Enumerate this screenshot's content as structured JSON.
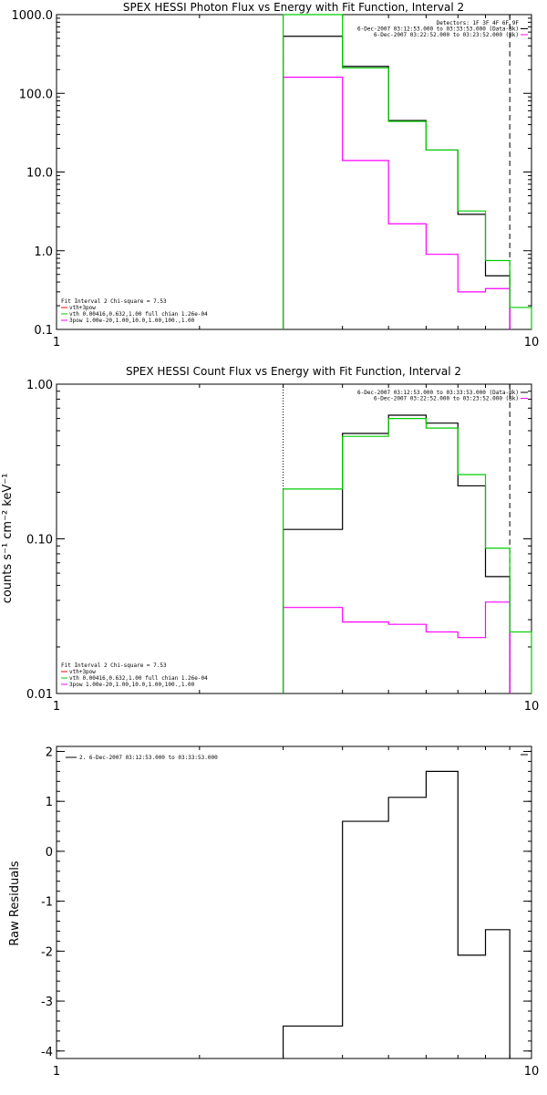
{
  "colors": {
    "black": "#000000",
    "magenta": "#ff00ff",
    "green": "#00cc00",
    "red": "#ff0000"
  },
  "chart_data": [
    {
      "type": "line",
      "title": "SPEX HESSI Photon Flux vs Energy with Fit Function, Interval 2",
      "ylabel": "",
      "xlog": true,
      "ylog": true,
      "xlim": [
        1,
        10
      ],
      "ylim": [
        0.1,
        1000
      ],
      "xticks": [
        {
          "v": 1,
          "label": "1"
        },
        {
          "v": 10,
          "label": "10"
        }
      ],
      "yticks": [
        {
          "v": 0.1,
          "label": "0.1"
        },
        {
          "v": 1,
          "label": "1.0"
        },
        {
          "v": 10,
          "label": "10.0"
        },
        {
          "v": 100,
          "label": "100.0"
        },
        {
          "v": 1000,
          "label": "1000.0"
        }
      ],
      "edges": [
        3,
        4,
        5,
        6,
        7,
        8,
        9,
        10
      ],
      "series": [
        {
          "color": "black",
          "values": [
            530,
            220,
            45,
            19,
            2.9,
            0.48,
            null
          ]
        },
        {
          "color": "magenta",
          "values": [
            160,
            14,
            2.2,
            0.9,
            0.3,
            0.33,
            null
          ]
        },
        {
          "color": "green",
          "values": [
            1000,
            210,
            44,
            19,
            3.2,
            0.75,
            0.19
          ]
        }
      ],
      "vlines": [
        {
          "x": 3,
          "style": "dotted"
        },
        {
          "x": 9,
          "style": "dashed"
        }
      ],
      "legend_top": [
        {
          "text": "Detectors: 1F 3F 4F 6F 9F",
          "color": "black"
        },
        {
          "text": "6-Dec-2007 03:12:53.000 to 03:33:53.000 (Data-Bk)",
          "color": "black"
        },
        {
          "text": "6-Dec-2007 03:22:52.000 to 03:23:52.000 (Bk)",
          "color": "magenta"
        }
      ],
      "legend_bottom": [
        {
          "text": "Fit Interval 2   Chi-square = 7.53",
          "color": "black"
        },
        {
          "text": "vth+3pow",
          "color": "red"
        },
        {
          "text": "vth 0.00416,0.632,1.00  full chian 1.26e-04",
          "color": "green"
        },
        {
          "text": "3pow 1.00e-20,1.00,10.0,1.00,100.,1.00",
          "color": "magenta"
        }
      ]
    },
    {
      "type": "line",
      "title": "SPEX HESSI Count Flux vs Energy with Fit Function, Interval 2",
      "ylabel": "counts s⁻¹ cm⁻² keV⁻¹",
      "xlog": true,
      "ylog": true,
      "xlim": [
        1,
        10
      ],
      "ylim": [
        0.01,
        1
      ],
      "xticks": [
        {
          "v": 1,
          "label": "1"
        },
        {
          "v": 10,
          "label": "10"
        }
      ],
      "yticks": [
        {
          "v": 0.01,
          "label": "0.01"
        },
        {
          "v": 0.1,
          "label": "0.10"
        },
        {
          "v": 1,
          "label": "1.00"
        }
      ],
      "edges": [
        3,
        4,
        5,
        6,
        7,
        8,
        9,
        10
      ],
      "series": [
        {
          "color": "black",
          "values": [
            0.115,
            0.48,
            0.63,
            0.56,
            0.22,
            0.057,
            null
          ]
        },
        {
          "color": "magenta",
          "values": [
            0.036,
            0.029,
            0.028,
            0.025,
            0.023,
            0.039,
            null
          ]
        },
        {
          "color": "green",
          "values": [
            0.21,
            0.46,
            0.6,
            0.52,
            0.26,
            0.087,
            0.025
          ]
        }
      ],
      "vlines": [
        {
          "x": 3,
          "style": "dotted"
        },
        {
          "x": 9,
          "style": "dashed"
        }
      ],
      "legend_top": [
        {
          "text": "6-Dec-2007 03:12:53.000 to 03:33:53.000 (Data-Bk)",
          "color": "black"
        },
        {
          "text": "6-Dec-2007 03:22:52.000 to 03:23:52.000 (Bk)",
          "color": "magenta"
        }
      ],
      "legend_bottom": [
        {
          "text": "Fit Interval 2   Chi-square = 7.53",
          "color": "black"
        },
        {
          "text": "vth+3pow",
          "color": "red"
        },
        {
          "text": "vth 0.00416,0.632,1.00  full chian 1.26e-04",
          "color": "green"
        },
        {
          "text": "3pow 1.00e-20,1.00,10.0,1.00,100.,1.00",
          "color": "magenta"
        }
      ]
    },
    {
      "type": "line",
      "title": "",
      "ylabel": "Raw Residuals",
      "xlog": true,
      "ylog": false,
      "xlim": [
        1,
        10
      ],
      "ylim": [
        -4.15,
        2.1
      ],
      "xticks": [
        {
          "v": 1,
          "label": "1"
        },
        {
          "v": 10,
          "label": "10"
        }
      ],
      "yticks": [
        {
          "v": -4,
          "label": "-4"
        },
        {
          "v": -3,
          "label": "-3"
        },
        {
          "v": -2,
          "label": "-2"
        },
        {
          "v": -1,
          "label": "-1"
        },
        {
          "v": 0,
          "label": "0"
        },
        {
          "v": 1,
          "label": "1"
        },
        {
          "v": 2,
          "label": "2"
        }
      ],
      "edges": [
        3,
        4,
        5,
        6,
        7,
        8,
        9
      ],
      "series": [
        {
          "color": "black",
          "values": [
            -3.5,
            0.6,
            1.08,
            1.6,
            -2.08,
            -1.57
          ]
        }
      ],
      "vlines": [],
      "legend_top": [
        {
          "text": "2.  6-Dec-2007 03:12:53.000 to 03:33:53.000",
          "color": "black"
        }
      ],
      "legend_bottom": []
    }
  ]
}
